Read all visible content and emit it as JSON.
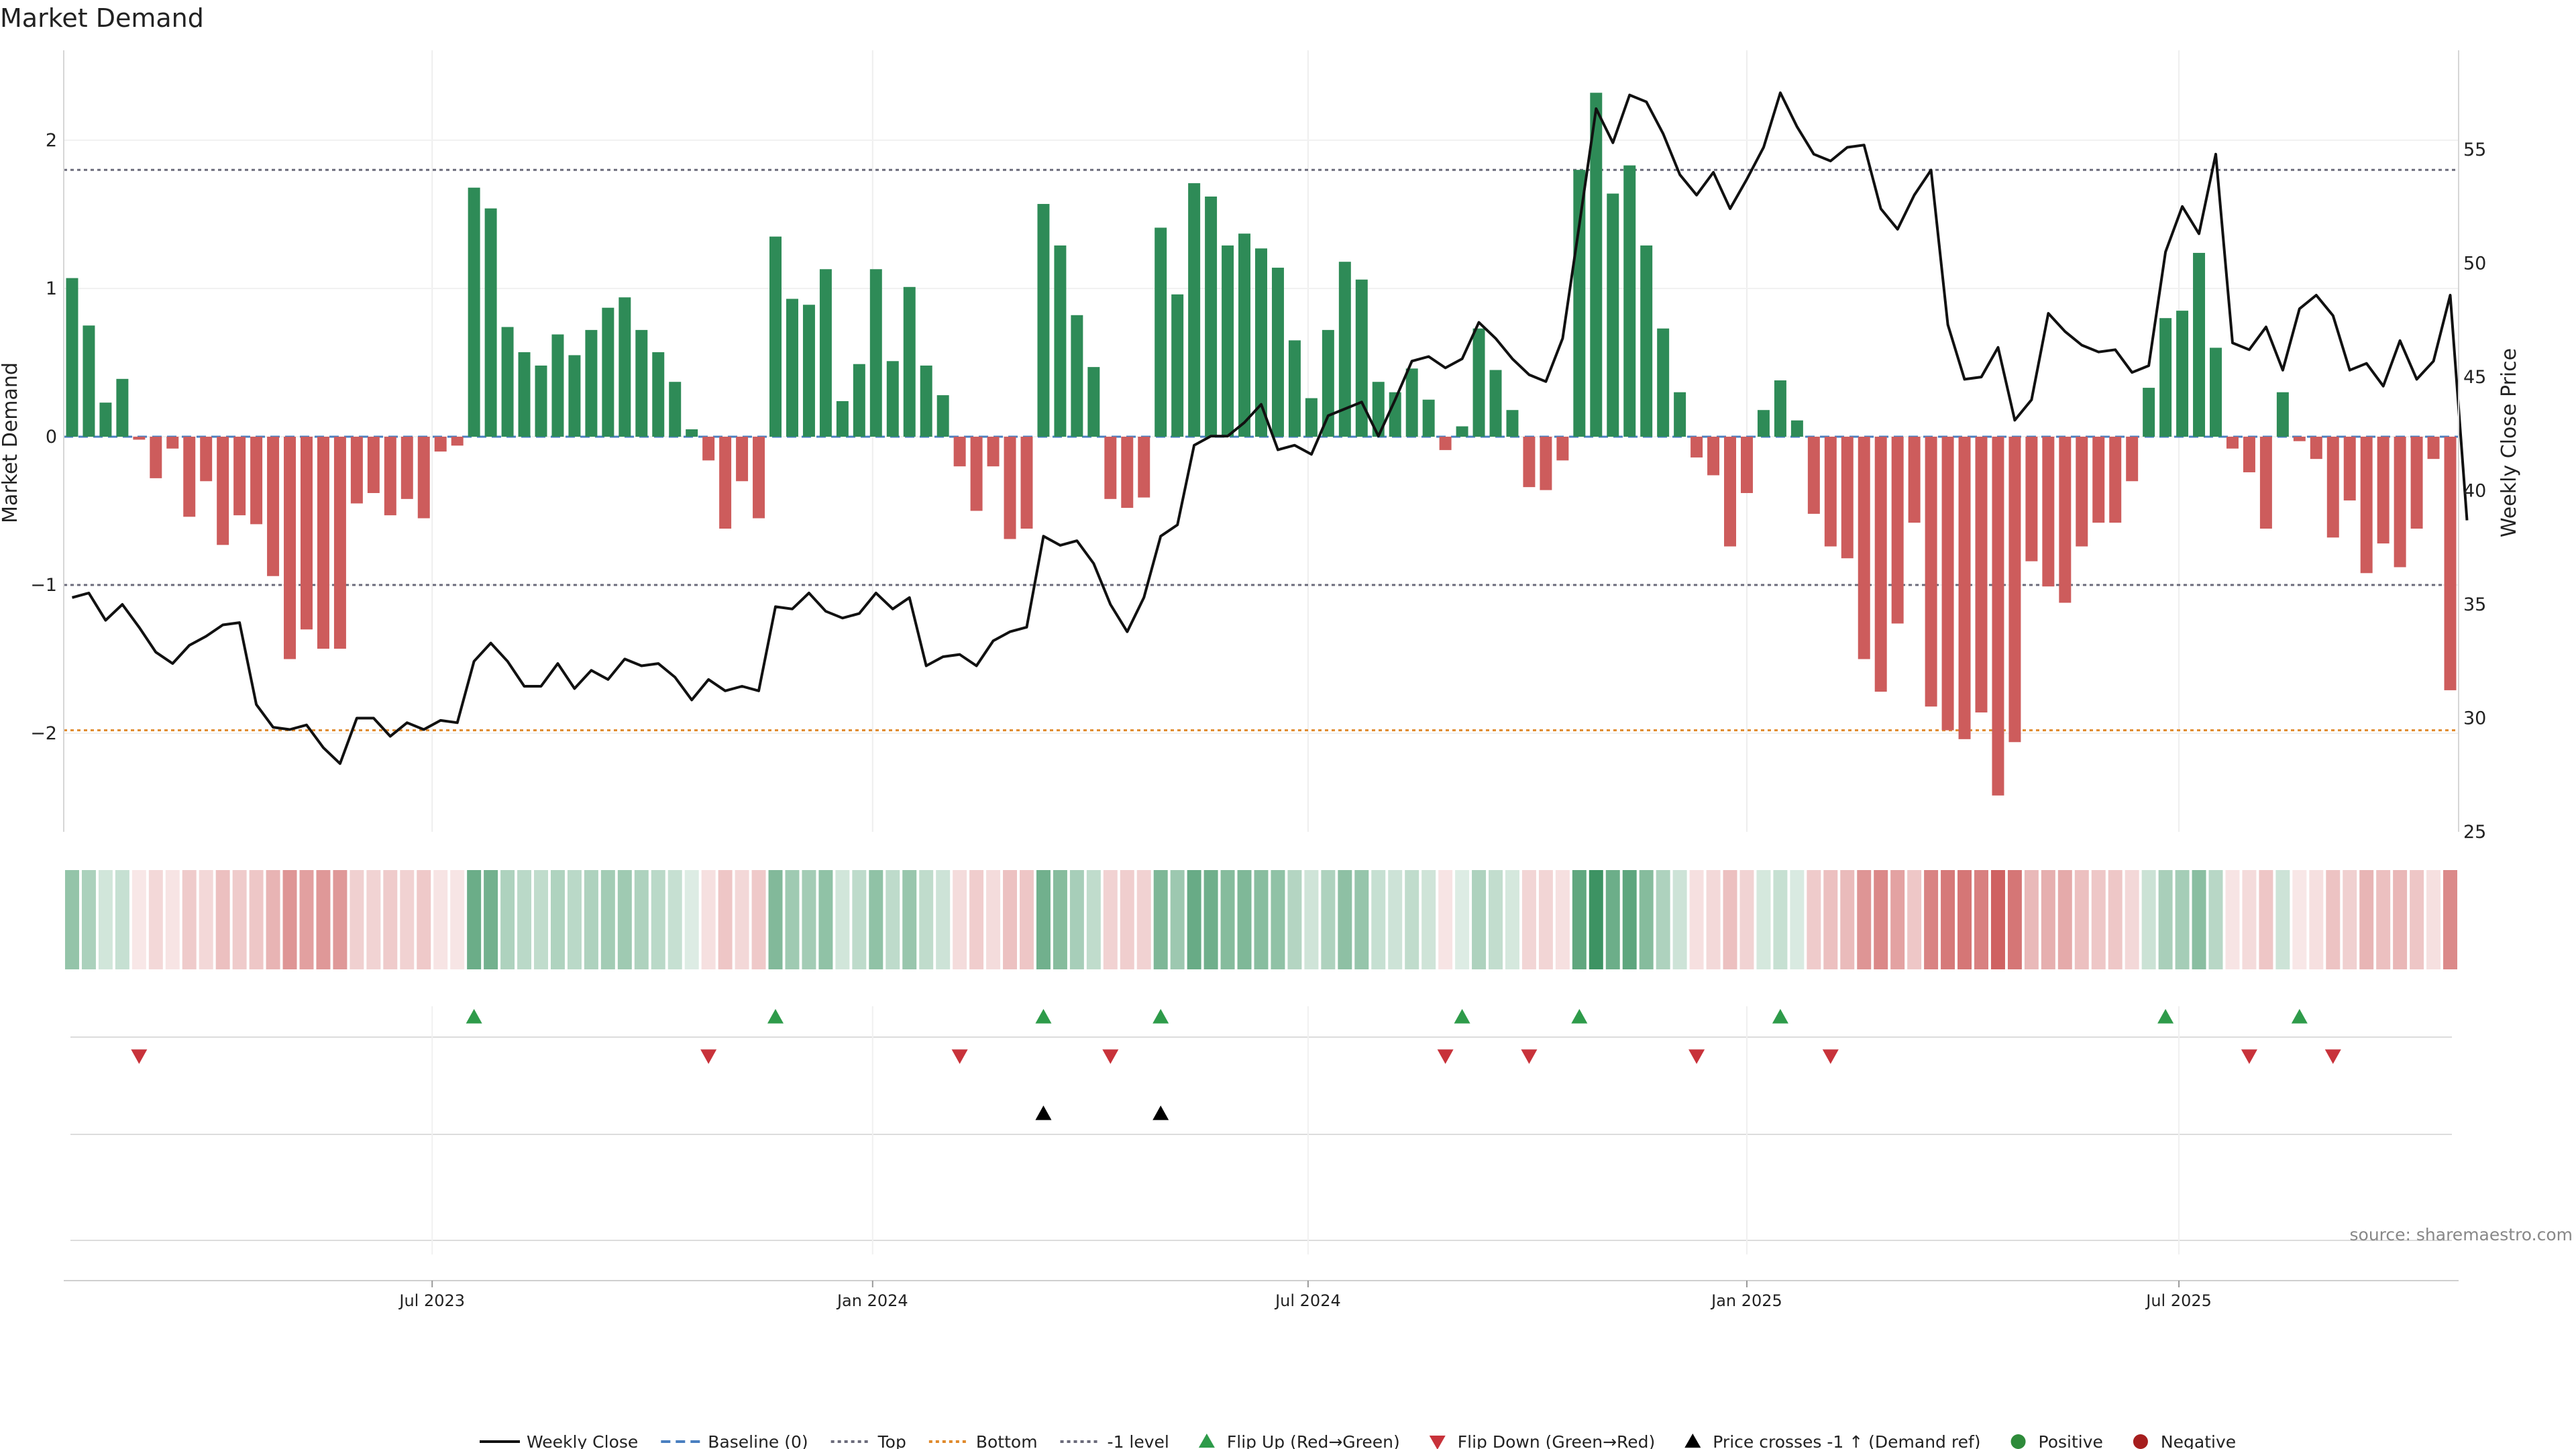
{
  "chart_data": {
    "title": "Market Demand",
    "type": "bar+line",
    "ylabel_left": "Market Demand",
    "ylabel_right": "Weekly Close Price",
    "ylim_left": [
      -2.7,
      2.6
    ],
    "ylim_right": [
      25,
      59
    ],
    "yticks_left": [
      {
        "v": 2,
        "label": "2"
      },
      {
        "v": 1,
        "label": "1"
      },
      {
        "v": 0,
        "label": "0"
      },
      {
        "v": -1,
        "label": "−1"
      },
      {
        "v": -2,
        "label": "−2"
      }
    ],
    "yticks_right": [
      {
        "v": 55,
        "label": "55"
      },
      {
        "v": 50,
        "label": "50"
      },
      {
        "v": 45,
        "label": "45"
      },
      {
        "v": 40,
        "label": "40"
      },
      {
        "v": 35,
        "label": "35"
      },
      {
        "v": 30,
        "label": "30"
      },
      {
        "v": 25,
        "label": "25"
      }
    ],
    "x_tick_labels": [
      {
        "week": 21.5,
        "label": "Jul 2023"
      },
      {
        "week": 47.8,
        "label": "Jan 2024"
      },
      {
        "week": 73.8,
        "label": "Jul 2024"
      },
      {
        "week": 100.0,
        "label": "Jan 2025"
      },
      {
        "week": 125.8,
        "label": "Jul 2025"
      }
    ],
    "reference_lines": [
      {
        "name": "Top",
        "value": 1.8,
        "color": "#6b6b7b",
        "style": "dotted"
      },
      {
        "name": "-1 level",
        "value": -1.0,
        "color": "#6b6b7b",
        "style": "dotted"
      },
      {
        "name": "Bottom",
        "value": -1.98,
        "color": "#e08a2c",
        "style": "dotted"
      },
      {
        "name": "Baseline (0)",
        "value": 0,
        "color": "#4a7fc0",
        "style": "dashed"
      }
    ],
    "demand": [
      1.07,
      0.75,
      0.23,
      0.39,
      -0.02,
      -0.28,
      -0.08,
      -0.54,
      -0.3,
      -0.73,
      -0.53,
      -0.59,
      -0.94,
      -1.5,
      -1.3,
      -1.43,
      -1.43,
      -0.45,
      -0.38,
      -0.53,
      -0.42,
      -0.55,
      -0.1,
      -0.06,
      1.68,
      1.54,
      0.74,
      0.57,
      0.48,
      0.69,
      0.55,
      0.72,
      0.87,
      0.94,
      0.72,
      0.57,
      0.37,
      0.05,
      -0.16,
      -0.62,
      -0.3,
      -0.55,
      1.35,
      0.93,
      0.89,
      1.13,
      0.24,
      0.49,
      1.13,
      0.51,
      1.01,
      0.48,
      0.28,
      -0.2,
      -0.5,
      -0.2,
      -0.69,
      -0.62,
      1.57,
      1.29,
      0.82,
      0.47,
      -0.42,
      -0.48,
      -0.41,
      1.41,
      0.96,
      1.71,
      1.62,
      1.29,
      1.37,
      1.27,
      1.14,
      0.65,
      0.26,
      0.72,
      1.18,
      1.06,
      0.37,
      0.3,
      0.46,
      0.25,
      -0.09,
      0.07,
      0.73,
      0.45,
      0.18,
      -0.34,
      -0.36,
      -0.16,
      1.8,
      2.32,
      1.64,
      1.83,
      1.29,
      0.73,
      0.3,
      -0.14,
      -0.26,
      -0.74,
      -0.38,
      0.18,
      0.38,
      0.11,
      -0.52,
      -0.74,
      -0.82,
      -1.5,
      -1.72,
      -1.26,
      -0.58,
      -1.82,
      -1.98,
      -2.04,
      -1.86,
      -2.42,
      -2.06,
      -0.84,
      -1.01,
      -1.12,
      -0.74,
      -0.58,
      -0.58,
      -0.3,
      0.33,
      0.8,
      0.85,
      1.24,
      0.6,
      -0.08,
      -0.24,
      -0.62,
      0.3,
      -0.03,
      -0.15,
      -0.68,
      -0.43,
      -0.92,
      -0.72,
      -0.88,
      -0.62,
      -0.15,
      -1.71
    ],
    "price": [
      35.3,
      35.5,
      34.3,
      35.0,
      34.0,
      32.9,
      32.4,
      33.2,
      33.6,
      34.1,
      34.2,
      30.6,
      29.6,
      29.5,
      29.7,
      28.7,
      28.0,
      30.0,
      30.0,
      29.2,
      29.8,
      29.5,
      29.9,
      29.8,
      32.5,
      33.3,
      32.5,
      31.4,
      31.4,
      32.4,
      31.3,
      32.1,
      31.7,
      32.6,
      32.3,
      32.4,
      31.8,
      30.8,
      31.7,
      31.2,
      31.4,
      31.2,
      34.9,
      34.8,
      35.5,
      34.7,
      34.4,
      34.6,
      35.5,
      34.8,
      35.3,
      32.3,
      32.7,
      32.8,
      32.3,
      33.4,
      33.8,
      34.0,
      38.0,
      37.6,
      37.8,
      36.8,
      35.0,
      33.8,
      35.3,
      38.0,
      38.5,
      42.0,
      42.4,
      42.4,
      43.0,
      43.8,
      41.8,
      42.0,
      41.6,
      43.3,
      43.6,
      43.9,
      42.4,
      44.0,
      45.7,
      45.9,
      45.4,
      45.8,
      47.4,
      46.7,
      45.8,
      45.1,
      44.8,
      46.7,
      51.7,
      56.8,
      55.3,
      57.4,
      57.1,
      55.7,
      53.9,
      53.0,
      54.0,
      52.4,
      53.7,
      55.1,
      57.5,
      56.0,
      54.8,
      54.5,
      55.1,
      55.2,
      52.4,
      51.5,
      53.0,
      54.1,
      47.3,
      44.9,
      45.0,
      46.3,
      43.1,
      44.0,
      47.8,
      47.0,
      46.4,
      46.1,
      46.2,
      45.2,
      45.5,
      50.5,
      52.5,
      51.3,
      54.8,
      46.5,
      46.2,
      47.2,
      45.3,
      48.0,
      48.6,
      47.7,
      45.3,
      45.6,
      44.6,
      46.6,
      44.9,
      45.7,
      48.6,
      38.7
    ],
    "flip_up_weeks": [
      24,
      42,
      58,
      65,
      83,
      90,
      102,
      125,
      133
    ],
    "flip_down_weeks": [
      4,
      38,
      53,
      62,
      82,
      87,
      97,
      105,
      130,
      135
    ],
    "price_cross_weeks": [
      58,
      65
    ],
    "source": "source: sharemaestro.com",
    "legend": [
      {
        "key": "line",
        "label": "Weekly Close",
        "color": "#111111"
      },
      {
        "key": "dash",
        "label": "Baseline (0)",
        "color": "#4a7fc0"
      },
      {
        "key": "dot",
        "label": "Top",
        "color": "#6b6b7b"
      },
      {
        "key": "dot",
        "label": "Bottom",
        "color": "#e08a2c"
      },
      {
        "key": "dot",
        "label": "-1 level",
        "color": "#6b6b7b"
      },
      {
        "key": "tri-up",
        "label": "Flip Up (Red→Green)",
        "color": "#2e9b4a"
      },
      {
        "key": "tri-down",
        "label": "Flip Down (Green→Red)",
        "color": "#c8323a"
      },
      {
        "key": "tri-up",
        "label": "Price crosses -1 ↑ (Demand ref)",
        "color": "#000000"
      },
      {
        "key": "circle",
        "label": "Positive",
        "color": "#2e8b3a"
      },
      {
        "key": "circle",
        "label": "Negative",
        "color": "#a61e1e"
      }
    ],
    "colors": {
      "positive": "#2e8b57",
      "negative": "#cd5c5c",
      "price": "#111111"
    }
  }
}
